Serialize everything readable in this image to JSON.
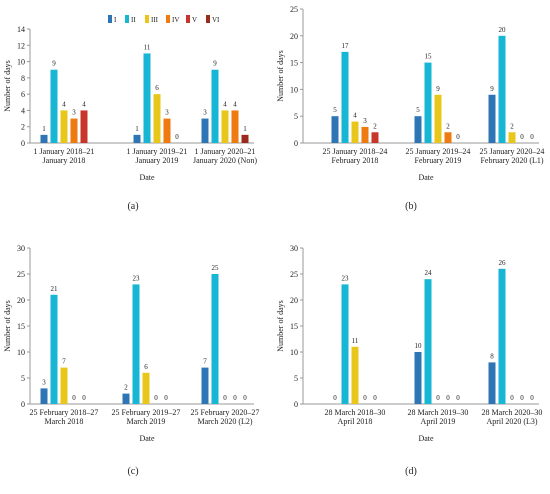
{
  "colors": {
    "series": [
      "#2e75b6",
      "#16b6d4",
      "#e9c71a",
      "#ee7a10",
      "#c8352a",
      "#9c2b1e"
    ]
  },
  "chart_data": [
    {
      "type": "bar",
      "panel_label": "(a)",
      "xlabel": "Date",
      "ylabel": "Number of days",
      "ylim": [
        0,
        14
      ],
      "ytick_step": 2,
      "grid": false,
      "legend": "top",
      "categories": [
        "1 January 2018–21 January 2018",
        "1 January 2019–21 January 2019",
        "1 January 2020–21 January 2020 (Non)"
      ],
      "category_lines": [
        [
          "1 January 2018–21",
          "January 2018"
        ],
        [
          "1 January 2019–21",
          "January 2019"
        ],
        [
          "1 January 2020–21",
          "January 2020 (Non)"
        ]
      ],
      "series": [
        {
          "name": "I",
          "values": [
            1,
            1,
            3
          ]
        },
        {
          "name": "II",
          "values": [
            9,
            11,
            9
          ]
        },
        {
          "name": "III",
          "values": [
            4,
            6,
            4
          ]
        },
        {
          "name": "IV",
          "values": [
            3,
            3,
            4
          ]
        },
        {
          "name": "V",
          "values": [
            4,
            0,
            null
          ]
        },
        {
          "name": "VI",
          "values": [
            null,
            null,
            1
          ]
        }
      ]
    },
    {
      "type": "bar",
      "panel_label": "(b)",
      "xlabel": "Date",
      "ylabel": "Number of days",
      "ylim": [
        0,
        25
      ],
      "ytick_step": 5,
      "grid": false,
      "categories": [
        "25 January 2018–24 February 2018",
        "25 January 2019–24 February 2019",
        "25 January 2020–24 February 2020 (L1)"
      ],
      "category_lines": [
        [
          "25 January 2018–24",
          "February 2018"
        ],
        [
          "25 January 2019–24",
          "February 2019"
        ],
        [
          "25 January 2020–24",
          "February 2020 (L1)"
        ]
      ],
      "series": [
        {
          "name": "I",
          "values": [
            5,
            5,
            9
          ]
        },
        {
          "name": "II",
          "values": [
            17,
            15,
            20
          ]
        },
        {
          "name": "III",
          "values": [
            4,
            9,
            2
          ]
        },
        {
          "name": "IV",
          "values": [
            3,
            2,
            0
          ]
        },
        {
          "name": "V",
          "values": [
            2,
            0,
            0
          ]
        }
      ]
    },
    {
      "type": "bar",
      "panel_label": "(c)",
      "xlabel": "Date",
      "ylabel": "Number of days",
      "ylim": [
        0,
        30
      ],
      "ytick_step": 5,
      "grid": false,
      "categories": [
        "25 February 2018–27 March 2018",
        "25 February 2019–27 March 2019",
        "25 February 2020–27 March 2020 (L2)"
      ],
      "category_lines": [
        [
          "25 February 2018–27",
          "March 2018"
        ],
        [
          "25 February 2019–27",
          "March 2019"
        ],
        [
          "25 February 2020–27",
          "March 2020 (L2)"
        ]
      ],
      "series": [
        {
          "name": "I",
          "values": [
            3,
            2,
            7
          ]
        },
        {
          "name": "II",
          "values": [
            21,
            23,
            25
          ]
        },
        {
          "name": "III",
          "values": [
            7,
            6,
            0
          ]
        },
        {
          "name": "IV",
          "values": [
            0,
            0,
            0
          ]
        },
        {
          "name": "V",
          "values": [
            0,
            0,
            0
          ]
        }
      ]
    },
    {
      "type": "bar",
      "panel_label": "(d)",
      "xlabel": "Date",
      "ylabel": "Number of days",
      "ylim": [
        0,
        30
      ],
      "ytick_step": 5,
      "grid": false,
      "categories": [
        "28 March 2018–30 April 2018",
        "28 March 2019–30 April 2019",
        "28 March 2020–30 April 2020 (L3)"
      ],
      "category_lines": [
        [
          "28 March 2018–30",
          "April 2018"
        ],
        [
          "28 March 2019–30",
          "April 2019"
        ],
        [
          "28 March 2020–30",
          "April 2020 (L3)"
        ]
      ],
      "series": [
        {
          "name": "I",
          "values": [
            0,
            10,
            8
          ]
        },
        {
          "name": "II",
          "values": [
            23,
            24,
            26
          ]
        },
        {
          "name": "III",
          "values": [
            11,
            0,
            0
          ]
        },
        {
          "name": "IV",
          "values": [
            0,
            0,
            0
          ]
        },
        {
          "name": "V",
          "values": [
            0,
            0,
            0
          ]
        }
      ]
    }
  ]
}
